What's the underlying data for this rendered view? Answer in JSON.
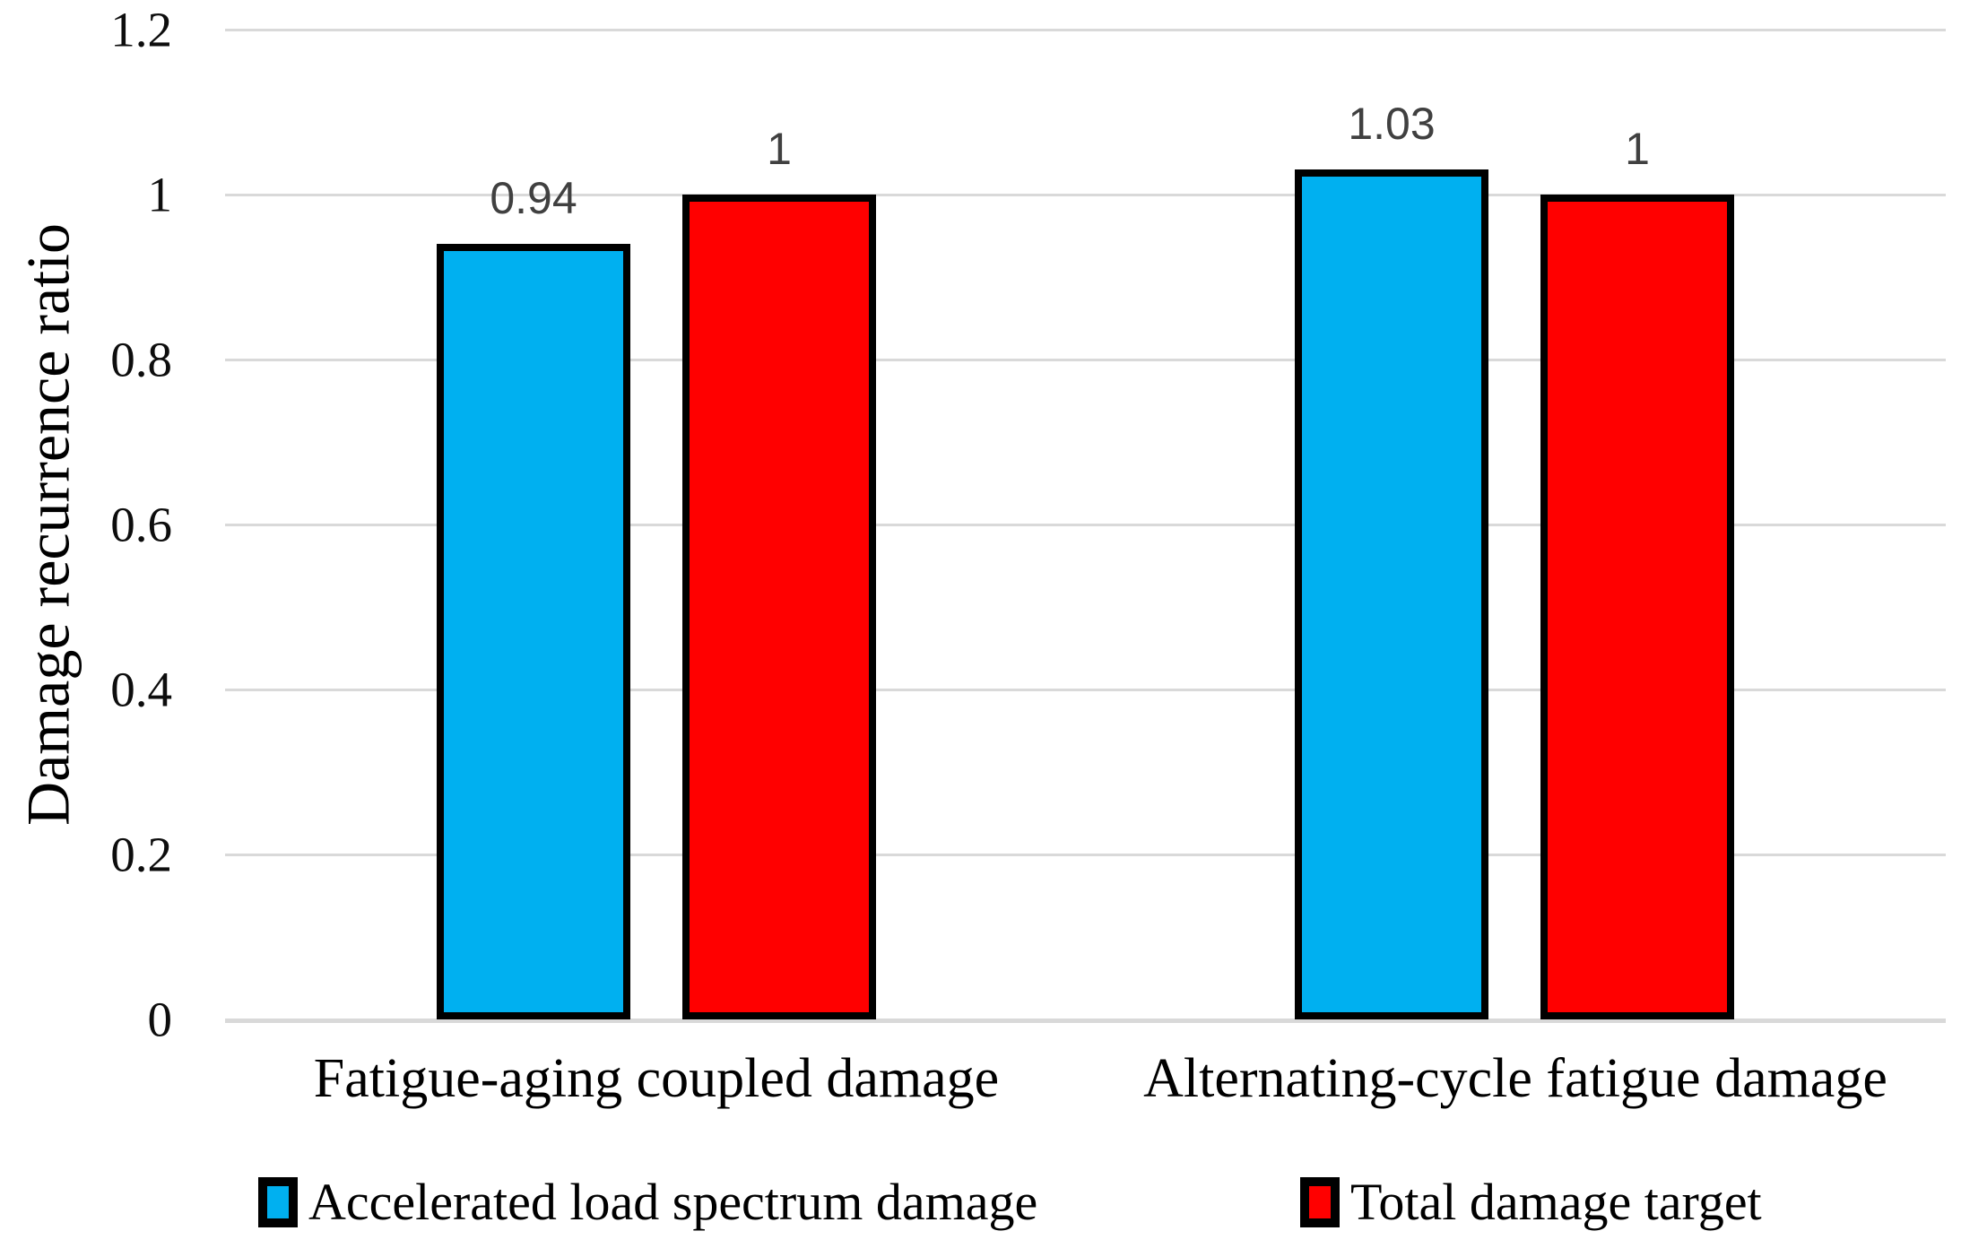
{
  "chart_data": {
    "type": "bar",
    "title": "",
    "xlabel": "",
    "ylabel": "Damage recurrence ratio",
    "ylim": [
      0,
      1.2
    ],
    "yticks": [
      {
        "value": 0,
        "label": "0"
      },
      {
        "value": 0.2,
        "label": "0.2"
      },
      {
        "value": 0.4,
        "label": "0.4"
      },
      {
        "value": 0.6,
        "label": "0.6"
      },
      {
        "value": 0.8,
        "label": "0.8"
      },
      {
        "value": 1,
        "label": "1"
      },
      {
        "value": 1.2,
        "label": "1.2"
      }
    ],
    "categories": [
      "Fatigue-aging coupled damage",
      "Alternating-cycle fatigue damage"
    ],
    "series": [
      {
        "name": "Accelerated load spectrum damage",
        "color": "#00b0f0",
        "values": [
          0.94,
          1.03
        ],
        "data_labels": [
          "0.94",
          "1.03"
        ]
      },
      {
        "name": "Total damage target",
        "color": "#ff0000",
        "values": [
          1,
          1
        ],
        "data_labels": [
          "1",
          "1"
        ]
      }
    ],
    "grid": true,
    "legend_position": "bottom",
    "bar_border_color": "#000000",
    "gridline_color": "#d9d9d9"
  }
}
